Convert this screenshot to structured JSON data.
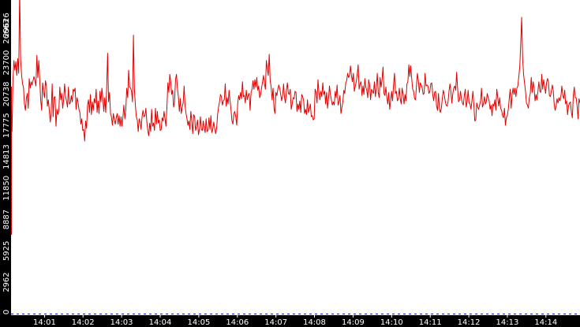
{
  "colors": {
    "background": "#ffffff",
    "axis_band": "#000000",
    "axis_text": "#ffffff",
    "series": "#e00000",
    "baseline": "#1a1aa0"
  },
  "chart_data": {
    "type": "line",
    "title": "",
    "xlabel": "",
    "ylabel": "",
    "grid": false,
    "legend": "none",
    "y_ticks": [
      "0",
      "2962",
      "5925",
      "8887",
      "11850",
      "14813",
      "17775",
      "20738",
      "23700",
      "26663",
      "29626"
    ],
    "ylim": [
      0,
      29626
    ],
    "x_ticks": [
      "14:01",
      "14:02",
      "14:03",
      "14:04",
      "14:05",
      "14:06",
      "14:07",
      "14:08",
      "14:09",
      "14:10",
      "14:11",
      "14:12",
      "14:13",
      "14:14"
    ],
    "xlim": [
      "14:00:08",
      "14:14:53"
    ],
    "series": [
      {
        "name": "",
        "x_start": "14:00:08",
        "x_end": "14:14:53",
        "values": [
          20100,
          17200,
          22100,
          23900,
          23000,
          23800,
          22500,
          24100,
          22700,
          30500,
          24000,
          22600,
          21700,
          21400,
          19800,
          19200,
          20300,
          20800,
          19400,
          22200,
          21300,
          21900,
          21600,
          22000,
          22400,
          22000,
          21500,
          24400,
          22300,
          23900,
          22100,
          20200,
          19200,
          21800,
          20900,
          20400,
          22000,
          21500,
          19600,
          20200,
          19200,
          18100,
          19000,
          21700,
          18600,
          20400,
          20500,
          17700,
          19300,
          18800,
          19200,
          21400,
          20200,
          20800,
          19400,
          20200,
          21700,
          20500,
          20100,
          19500,
          21400,
          19800,
          19900,
          20600,
          20000,
          21200,
          21000,
          21300,
          19300,
          20400,
          20000,
          19300,
          19000,
          17900,
          18400,
          17300,
          17400,
          16300,
          18200,
          17500,
          19700,
          20200,
          19000,
          20700,
          18800,
          20000,
          19200,
          20300,
          19900,
          21200,
          19000,
          20100,
          18900,
          21000,
          20000,
          21300,
          20300,
          19100,
          20400,
          19000,
          21300,
          24600,
          20000,
          20900,
          18900,
          18600,
          17800,
          18900,
          18300,
          17900,
          18500,
          18900,
          17900,
          18700,
          17700,
          18600,
          17700,
          18600,
          19700,
          18400,
          19300,
          21300,
          20400,
          23000,
          21400,
          21300,
          21000,
          20000,
          26300,
          21200,
          19700,
          18600,
          18300,
          17200,
          18400,
          18100,
          17400,
          18600,
          19200,
          18600,
          18700,
          19400,
          18100,
          17300,
          16800,
          18000,
          17200,
          19300,
          17700,
          18000,
          17300,
          19400,
          17900,
          19100,
          18000,
          18300,
          17300,
          17400,
          18500,
          18200,
          19100,
          18400,
          17700,
          19500,
          21800,
          20900,
          22600,
          21900,
          20700,
          21100,
          19500,
          20000,
          22100,
          22600,
          21300,
          20500,
          19100,
          20300,
          18900,
          19500,
          19900,
          21500,
          19600,
          18900,
          18400,
          17800,
          18200,
          17400,
          19100,
          18200,
          17000,
          18800,
          18600,
          17300,
          17700,
          18300,
          16900,
          17400,
          18600,
          17400,
          17300,
          18200,
          17500,
          17100,
          18400,
          17200,
          17300,
          18500,
          17400,
          18700,
          17100,
          17400,
          18100,
          17500,
          17000,
          17500,
          18800,
          19500,
          20000,
          20700,
          20500,
          19700,
          20100,
          20200,
          21700,
          19600,
          20400,
          19800,
          21100,
          20100,
          19300,
          18200,
          17900,
          18900,
          19100,
          18600,
          17800,
          19800,
          20600,
          20200,
          20900,
          20300,
          21900,
          20500,
          20600,
          19900,
          21100,
          20200,
          20600,
          20800,
          19200,
          20900,
          21200,
          22000,
          21200,
          22100,
          21400,
          22300,
          21100,
          21500,
          20400,
          20700,
          21300,
          21900,
          22500,
          21700,
          21200,
          23900,
          23100,
          22500,
          24500,
          22000,
          21400,
          20200,
          21300,
          19400,
          18900,
          20900,
          20600,
          21200,
          21600,
          21300,
          20700,
          20100,
          20600,
          21700,
          20400,
          19900,
          21100,
          21800,
          20800,
          20700,
          21200,
          19300,
          19800,
          20400,
          20300,
          21000,
          20900,
          19100,
          19800,
          19300,
          20100,
          19000,
          20700,
          20500,
          20100,
          18900,
          19300,
          18800,
          20200,
          19000,
          19300,
          19800,
          18600,
          18700,
          18300,
          18400,
          21200,
          20900,
          19900,
          22100,
          20900,
          20200,
          21000,
          20500,
          21800,
          20700,
          21000,
          19800,
          20900,
          19400,
          20300,
          21500,
          20700,
          20200,
          19700,
          20000,
          19700,
          21000,
          20400,
          21600,
          19700,
          20000,
          20600,
          18900,
          19500,
          20000,
          21100,
          20800,
          21800,
          22000,
          22700,
          22300,
          22500,
          23400,
          22500,
          21900,
          22700,
          21000,
          21500,
          21900,
          22600,
          23500,
          21200,
          21700,
          21900,
          20600,
          21500,
          20700,
          22200,
          21400,
          21100,
          20400,
          22100,
          21600,
          20200,
          21200,
          21000,
          20800,
          21900,
          20500,
          21300,
          22700,
          20900,
          20400,
          22300,
          21400,
          22100,
          23300,
          20800,
          20600,
          21400,
          20400,
          19800,
          20900,
          19300,
          20100,
          21000,
          20100,
          21600,
          22700,
          20800,
          21000,
          20100,
          20300,
          21300,
          20300,
          19800,
          21300,
          20700,
          19800,
          20700,
          20100,
          21700,
          21900,
          23500,
          22400,
          23400,
          22200,
          21200,
          21000,
          20300,
          20200,
          21600,
          22700,
          22000,
          20900,
          21800,
          21600,
          21300,
          20700,
          20800,
          22700,
          21500,
          21600,
          21500,
          20800,
          21000,
          21700,
          21800,
          20700,
          20100,
          20900,
          21000,
          19600,
          19200,
          20800,
          19400,
          19000,
          19400,
          20300,
          21100,
          20700,
          20100,
          19700,
          19600,
          20000,
          21000,
          21700,
          21000,
          19900,
          20800,
          21300,
          21500,
          21100,
          22800,
          21300,
          20000,
          20200,
          21000,
          20300,
          19900,
          19700,
          20600,
          21200,
          19500,
          20000,
          21100,
          19900,
          19800,
          19300,
          20100,
          21000,
          19700,
          18200,
          18300,
          19900,
          19500,
          19300,
          19700,
          20100,
          21300,
          19500,
          19800,
          20500,
          19800,
          20000,
          20800,
          20400,
          20100,
          19300,
          19700,
          18700,
          19800,
          19600,
          20200,
          19200,
          21200,
          20400,
          19600,
          20400,
          19400,
          19200,
          18700,
          18500,
          19400,
          17800,
          18500,
          18700,
          19300,
          20300,
          21200,
          19400,
          20700,
          21300,
          20700,
          21300,
          20500,
          21300,
          21500,
          22400,
          23300,
          25500,
          28000,
          24100,
          22600,
          21800,
          21000,
          19900,
          19700,
          19400,
          20400,
          20800,
          22300,
          20900,
          21900,
          21300,
          20100,
          20700,
          20200,
          21000,
          21900,
          21000,
          20900,
          22600,
          21200,
          22100,
          21500,
          20800,
          21800,
          22200,
          21900,
          20600,
          20500,
          21000,
          21600,
          21100,
          19800,
          19200,
          19600,
          20300,
          19900,
          20400,
          20100,
          20500,
          21500,
          20600,
          20300,
          21100,
          19800,
          20100,
          18800,
          19600,
          19900,
          20000,
          19000,
          18500,
          20600,
          21400,
          20400,
          20400,
          19600,
          18400,
          20300,
          19900
        ]
      }
    ]
  }
}
